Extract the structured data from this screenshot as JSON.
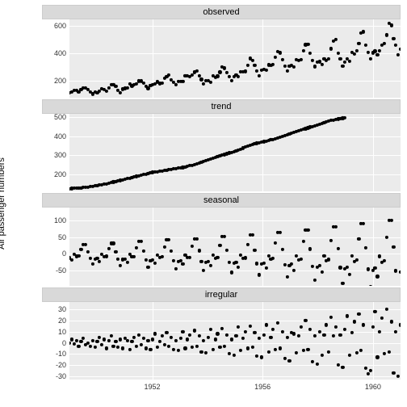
{
  "ylabel": "Air passenger numbers",
  "x": {
    "min": 1949,
    "max": 1961,
    "ticks": [
      1952,
      1956,
      1960
    ]
  },
  "layout": {
    "bg": "#ebebeb",
    "grid": "#ffffff",
    "strip_bg": "#d9d9d9",
    "point_color": "#000000",
    "point_size": 4.2,
    "label_fontsize": 11,
    "tick_fontsize": 9
  },
  "facets": [
    {
      "name": "observed",
      "ymin": 80,
      "ymax": 650,
      "yticks": [
        200,
        400,
        600
      ],
      "y": [
        112,
        118,
        132,
        129,
        121,
        135,
        148,
        148,
        136,
        119,
        104,
        118,
        115,
        126,
        141,
        135,
        125,
        149,
        170,
        170,
        158,
        133,
        114,
        140,
        145,
        150,
        178,
        163,
        172,
        178,
        199,
        199,
        184,
        162,
        146,
        166,
        171,
        180,
        193,
        181,
        183,
        218,
        230,
        242,
        209,
        191,
        172,
        194,
        196,
        196,
        236,
        235,
        229,
        243,
        264,
        272,
        237,
        211,
        180,
        201,
        204,
        188,
        235,
        227,
        234,
        264,
        302,
        293,
        259,
        229,
        203,
        229,
        242,
        233,
        267,
        269,
        270,
        315,
        364,
        347,
        312,
        274,
        237,
        278,
        284,
        277,
        317,
        313,
        318,
        374,
        413,
        405,
        355,
        306,
        271,
        306,
        315,
        301,
        356,
        348,
        355,
        422,
        465,
        467,
        404,
        347,
        305,
        336,
        340,
        318,
        362,
        348,
        363,
        435,
        491,
        505,
        404,
        359,
        310,
        337,
        360,
        342,
        406,
        396,
        420,
        472,
        548,
        559,
        463,
        407,
        362,
        405,
        417,
        391,
        419,
        461,
        472,
        535,
        622,
        606,
        508,
        461,
        390,
        432
      ]
    },
    {
      "name": "trend",
      "ymin": 110,
      "ymax": 520,
      "yticks": [
        200,
        300,
        400,
        500
      ],
      "y": [
        124,
        125,
        126,
        127,
        128,
        129,
        130,
        131,
        133,
        135,
        137,
        139,
        141,
        143,
        145,
        147,
        150,
        153,
        156,
        159,
        162,
        165,
        168,
        171,
        174,
        177,
        180,
        183,
        186,
        189,
        192,
        195,
        198,
        201,
        204,
        207,
        210,
        212,
        214,
        216,
        218,
        220,
        222,
        224,
        226,
        228,
        230,
        232,
        234,
        236,
        239,
        242,
        245,
        248,
        252,
        256,
        260,
        264,
        268,
        272,
        276,
        280,
        284,
        288,
        292,
        296,
        300,
        304,
        308,
        312,
        316,
        320,
        324,
        328,
        333,
        338,
        343,
        348,
        352,
        356,
        360,
        363,
        366,
        369,
        372,
        375,
        378,
        381,
        384,
        388,
        392,
        396,
        400,
        404,
        408,
        412,
        416,
        420,
        424,
        428,
        432,
        436,
        440,
        444,
        448,
        452,
        456,
        460,
        464,
        468,
        472,
        476,
        480,
        483,
        486,
        489,
        491,
        493,
        495,
        497
      ]
    },
    {
      "name": "seasonal",
      "ymin": -95,
      "ymax": 140,
      "yticks": [
        -50,
        0,
        50,
        100
      ],
      "y": [
        -12,
        -19,
        -2,
        -7,
        -6,
        14,
        28,
        28,
        6,
        -14,
        -30,
        -15,
        -14,
        -22,
        -2,
        -8,
        -7,
        16,
        32,
        32,
        7,
        -16,
        -35,
        -17,
        -16,
        -25,
        -2,
        -9,
        -8,
        19,
        37,
        37,
        8,
        -19,
        -40,
        -20,
        -18,
        -28,
        -3,
        -10,
        -9,
        21,
        42,
        42,
        9,
        -21,
        -45,
        -22,
        -20,
        -31,
        -3,
        -11,
        -10,
        23,
        46,
        46,
        10,
        -23,
        -50,
        -25,
        -22,
        -35,
        -4,
        -13,
        -11,
        26,
        52,
        52,
        11,
        -26,
        -56,
        -28,
        -25,
        -39,
        -4,
        -14,
        -12,
        29,
        58,
        58,
        12,
        -29,
        -63,
        -31,
        -28,
        -43,
        -5,
        -16,
        -14,
        33,
        65,
        65,
        14,
        -33,
        -70,
        -35,
        -31,
        -49,
        -5,
        -18,
        -15,
        37,
        73,
        73,
        15,
        -37,
        -79,
        -39,
        -35,
        -54,
        -6,
        -20,
        -17,
        41,
        81,
        81,
        17,
        -41,
        -88,
        -44,
        -39,
        -61,
        -6,
        -22,
        -19,
        46,
        91,
        91,
        19,
        -46,
        -98,
        -49,
        -43,
        -68,
        -7,
        -25,
        -21,
        51,
        101,
        101,
        21,
        -51,
        -110,
        -54
      ]
    },
    {
      "name": "irregular",
      "ymin": -33,
      "ymax": 37,
      "yticks": [
        -30,
        -20,
        -10,
        0,
        10,
        20,
        30
      ],
      "y": [
        0,
        3,
        -1,
        2,
        -3,
        1,
        4,
        -2,
        0,
        -3,
        2,
        -4,
        1,
        5,
        -2,
        3,
        -5,
        2,
        6,
        -3,
        1,
        -4,
        3,
        -5,
        4,
        2,
        -6,
        1,
        5,
        -3,
        7,
        -2,
        4,
        -5,
        2,
        -6,
        3,
        8,
        -4,
        1,
        6,
        -2,
        9,
        -3,
        5,
        -6,
        2,
        -7,
        4,
        10,
        -5,
        3,
        7,
        -4,
        11,
        -3,
        6,
        -8,
        2,
        -9,
        5,
        12,
        -6,
        3,
        8,
        -4,
        13,
        -3,
        7,
        -10,
        3,
        -11,
        6,
        14,
        -7,
        4,
        10,
        -5,
        15,
        -4,
        9,
        -12,
        4,
        -13,
        7,
        16,
        -8,
        5,
        12,
        -6,
        18,
        -5,
        10,
        -14,
        5,
        -16,
        9,
        8,
        -9,
        6,
        14,
        -7,
        20,
        -6,
        12,
        -17,
        6,
        -19,
        10,
        -11,
        7,
        16,
        -8,
        23,
        6,
        14,
        -20,
        7,
        -22,
        12,
        24,
        -11,
        9,
        19,
        -9,
        26,
        -7,
        16,
        -23,
        -28,
        -25,
        14,
        28,
        -13,
        10,
        22,
        -10,
        30,
        -8,
        19,
        -27,
        10,
        -30,
        16
      ]
    }
  ]
}
